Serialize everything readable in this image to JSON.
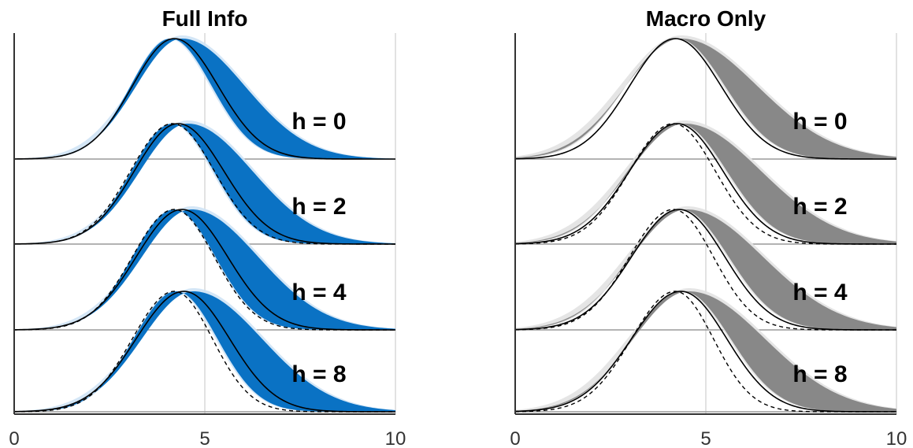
{
  "chart_data": [
    {
      "type": "area",
      "title": "Full Info",
      "xlabel": "",
      "ylabel": "",
      "xlim": [
        0,
        10
      ],
      "x_ticks": [
        "0",
        "5",
        "10"
      ],
      "x_grid_values": [
        5,
        10
      ],
      "band_color": "#0a72c4",
      "band_halo_color": "#cfe3f5",
      "baseline_color": "#9a9a9a",
      "rows": [
        {
          "label": "h = 0",
          "solid": {
            "mode": 4.2,
            "left_sd": 1.1,
            "right_sd": 1.15
          },
          "dashed": null,
          "band": {
            "lower_mode": 4.1,
            "lower_left_sd": 1.05,
            "lower_right_sd": 1.08,
            "upper_mode": 4.4,
            "upper_left_sd": 1.2,
            "upper_right_sd": 1.65
          }
        },
        {
          "label": "h = 2",
          "solid": {
            "mode": 4.3,
            "left_sd": 1.15,
            "right_sd": 1.2
          },
          "dashed": {
            "mode": 4.15,
            "left_sd": 1.1,
            "right_sd": 1.1
          },
          "band": {
            "lower_mode": 4.15,
            "lower_left_sd": 1.08,
            "lower_right_sd": 1.08,
            "upper_mode": 4.55,
            "upper_left_sd": 1.25,
            "upper_right_sd": 1.7
          }
        },
        {
          "label": "h = 4",
          "solid": {
            "mode": 4.4,
            "left_sd": 1.2,
            "right_sd": 1.2
          },
          "dashed": {
            "mode": 4.2,
            "left_sd": 1.1,
            "right_sd": 1.05
          },
          "band": {
            "lower_mode": 4.2,
            "lower_left_sd": 1.1,
            "lower_right_sd": 1.08,
            "upper_mode": 4.65,
            "upper_left_sd": 1.3,
            "upper_right_sd": 1.75
          }
        },
        {
          "label": "h = 8",
          "solid": {
            "mode": 4.45,
            "left_sd": 1.25,
            "right_sd": 1.2
          },
          "dashed": {
            "mode": 4.2,
            "left_sd": 1.1,
            "right_sd": 1.0
          },
          "band": {
            "lower_mode": 4.25,
            "lower_left_sd": 1.12,
            "lower_right_sd": 1.08,
            "upper_mode": 4.7,
            "upper_left_sd": 1.35,
            "upper_right_sd": 1.8
          }
        }
      ]
    },
    {
      "type": "area",
      "title": "Macro Only",
      "xlabel": "",
      "ylabel": "",
      "xlim": [
        0,
        10
      ],
      "x_ticks": [
        "0",
        "5",
        "10"
      ],
      "x_grid_values": [
        5,
        10
      ],
      "band_color": "#888888",
      "band_halo_color": "#e2e2e2",
      "baseline_color": "#9a9a9a",
      "rows": [
        {
          "label": "h = 0",
          "solid": {
            "mode": 4.2,
            "left_sd": 1.2,
            "right_sd": 1.2
          },
          "dashed": null,
          "band": {
            "lower_mode": 4.25,
            "lower_left_sd": 1.35,
            "lower_right_sd": 1.25,
            "upper_mode": 4.35,
            "upper_left_sd": 1.45,
            "upper_right_sd": 2.0
          }
        },
        {
          "label": "h = 2",
          "solid": {
            "mode": 4.25,
            "left_sd": 1.25,
            "right_sd": 1.2
          },
          "dashed": {
            "mode": 4.15,
            "left_sd": 1.15,
            "right_sd": 1.1
          },
          "band": {
            "lower_mode": 4.3,
            "lower_left_sd": 1.35,
            "lower_right_sd": 1.25,
            "upper_mode": 4.45,
            "upper_left_sd": 1.45,
            "upper_right_sd": 2.0
          }
        },
        {
          "label": "h = 4",
          "solid": {
            "mode": 4.3,
            "left_sd": 1.25,
            "right_sd": 1.2
          },
          "dashed": {
            "mode": 4.15,
            "left_sd": 1.15,
            "right_sd": 1.05
          },
          "band": {
            "lower_mode": 4.35,
            "lower_left_sd": 1.35,
            "lower_right_sd": 1.25,
            "upper_mode": 4.5,
            "upper_left_sd": 1.45,
            "upper_right_sd": 2.0
          }
        },
        {
          "label": "h = 8",
          "solid": {
            "mode": 4.35,
            "left_sd": 1.3,
            "right_sd": 1.2
          },
          "dashed": {
            "mode": 4.2,
            "left_sd": 1.15,
            "right_sd": 1.0
          },
          "band": {
            "lower_mode": 4.4,
            "lower_left_sd": 1.35,
            "lower_right_sd": 1.25,
            "upper_mode": 4.55,
            "upper_left_sd": 1.45,
            "upper_right_sd": 2.0
          }
        }
      ]
    }
  ]
}
